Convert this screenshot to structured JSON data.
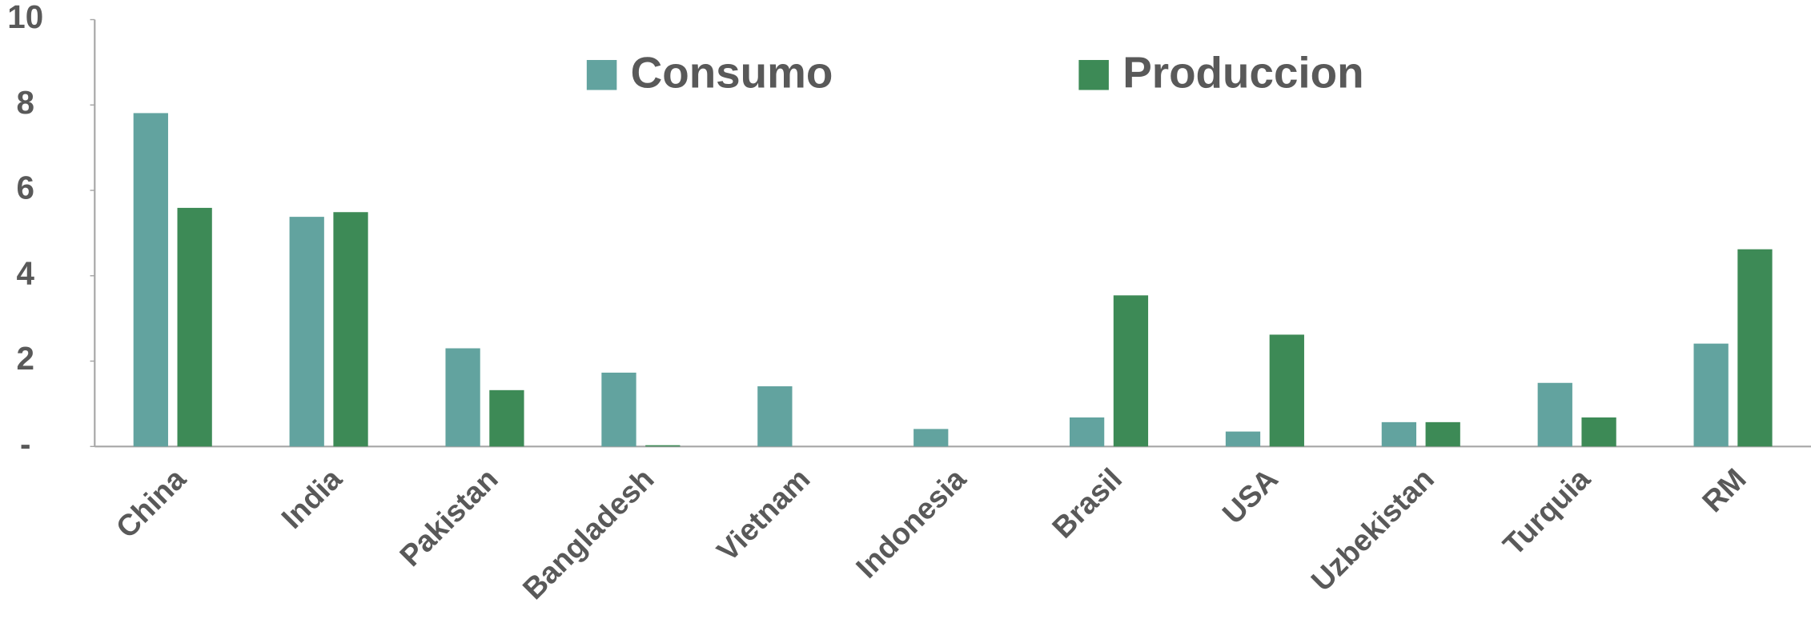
{
  "chart_data": {
    "type": "bar",
    "categories": [
      "China",
      "India",
      "Pakistan",
      "Bangladesh",
      "Vietnam",
      "Indonesia",
      "Brasil",
      "USA",
      "Uzbekistan",
      "Turquia",
      "RM"
    ],
    "series": [
      {
        "name": "Consumo",
        "color": "#62a39f",
        "values": [
          7.81,
          5.38,
          2.3,
          1.73,
          1.41,
          0.41,
          0.68,
          0.35,
          0.57,
          1.49,
          2.41
        ]
      },
      {
        "name": "Produccion",
        "color": "#3d8a56",
        "values": [
          5.59,
          5.49,
          1.32,
          0.03,
          0,
          0,
          3.54,
          2.62,
          0.57,
          0.68,
          4.62
        ]
      }
    ],
    "ylim": [
      0,
      10
    ],
    "yticks": [
      {
        "value": 0,
        "label": "-"
      },
      2,
      4,
      6,
      8,
      10
    ],
    "legend": "top"
  }
}
